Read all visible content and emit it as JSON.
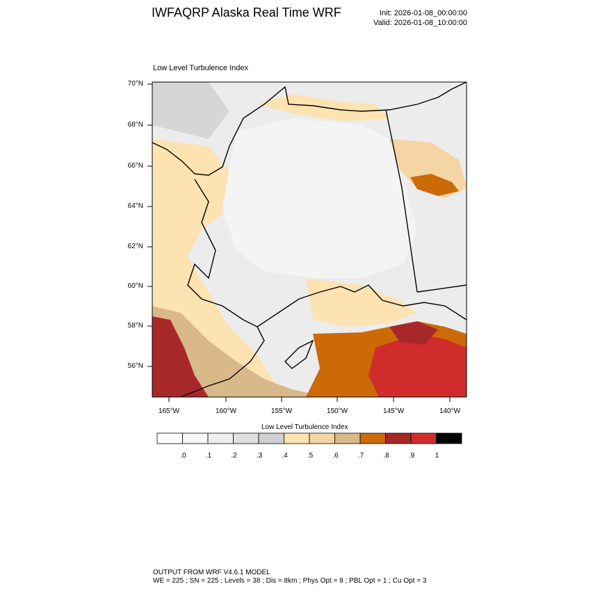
{
  "header": {
    "title": "IWFAQRP Alaska Real Time WRF",
    "init": "Init: 2026-01-08_00:00:00",
    "valid": "Valid: 2026-01-08_10:00:00"
  },
  "panel": {
    "title": "Low Level Turbulence Index",
    "lat_labels": [
      "70°N",
      "68°N",
      "66°N",
      "64°N",
      "62°N",
      "60°N",
      "58°N",
      "56°N"
    ],
    "lon_labels": [
      "165°W",
      "160°W",
      "155°W",
      "150°W",
      "145°W",
      "140°W"
    ]
  },
  "colorbar": {
    "title": "Low Level Turbulence Index",
    "labels": [
      ".0",
      ".1",
      ".2",
      ".3",
      ".4",
      ".5",
      ".6",
      ".7",
      ".8",
      ".9",
      "1"
    ],
    "colors": [
      "#ffffff",
      "#f7f7f7",
      "#eeeeee",
      "#e0e0e0",
      "#cfcfcf",
      "#fde3b2",
      "#f5d5a3",
      "#d9b98a",
      "#cc6a08",
      "#a8282a",
      "#d12c2c",
      "#000000"
    ]
  },
  "footer": {
    "line1": "OUTPUT FROM WRF V4.6.1 MODEL",
    "line2": "WE = 225 ; SN = 225 ; Levels = 38 ; Dis = 8km ; Phys Opt = 8 ; PBL Opt = 1 ; Cu Opt = 3"
  }
}
